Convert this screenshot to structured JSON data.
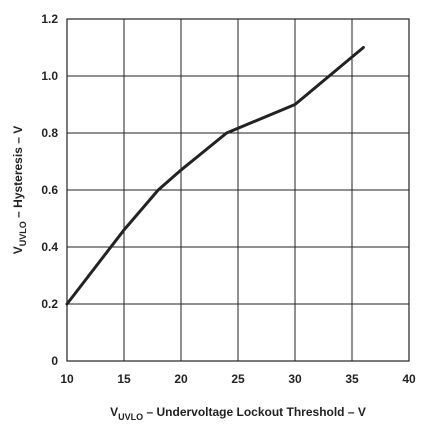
{
  "chart_data": {
    "type": "line",
    "title": "",
    "xlabel": {
      "main": "V",
      "sub": "UVLO",
      "rest": " – Undervoltage Lockout Threshold – V"
    },
    "ylabel": {
      "main": "V",
      "sub": "UVLO",
      "rest": " – Hysteresis – V"
    },
    "xlim": [
      10,
      40
    ],
    "ylim": [
      0,
      1.2
    ],
    "xticks": [
      10,
      15,
      20,
      25,
      30,
      35,
      40
    ],
    "yticks": [
      0,
      0.2,
      0.4,
      0.6,
      0.8,
      1.0,
      1.2
    ],
    "xtick_labels": [
      "10",
      "15",
      "20",
      "25",
      "30",
      "35",
      "40"
    ],
    "ytick_labels": [
      "0",
      "0.2",
      "0.4",
      "0.6",
      "0.8",
      "1.0",
      "1.2"
    ],
    "grid": true,
    "legend": "none",
    "line_color": "#222222",
    "grid_color": "#222222",
    "series": [
      {
        "x": [
          10,
          15,
          18,
          20,
          24,
          30,
          36
        ],
        "y": [
          0.2,
          0.46,
          0.6,
          0.67,
          0.8,
          0.9,
          1.1
        ]
      }
    ]
  }
}
